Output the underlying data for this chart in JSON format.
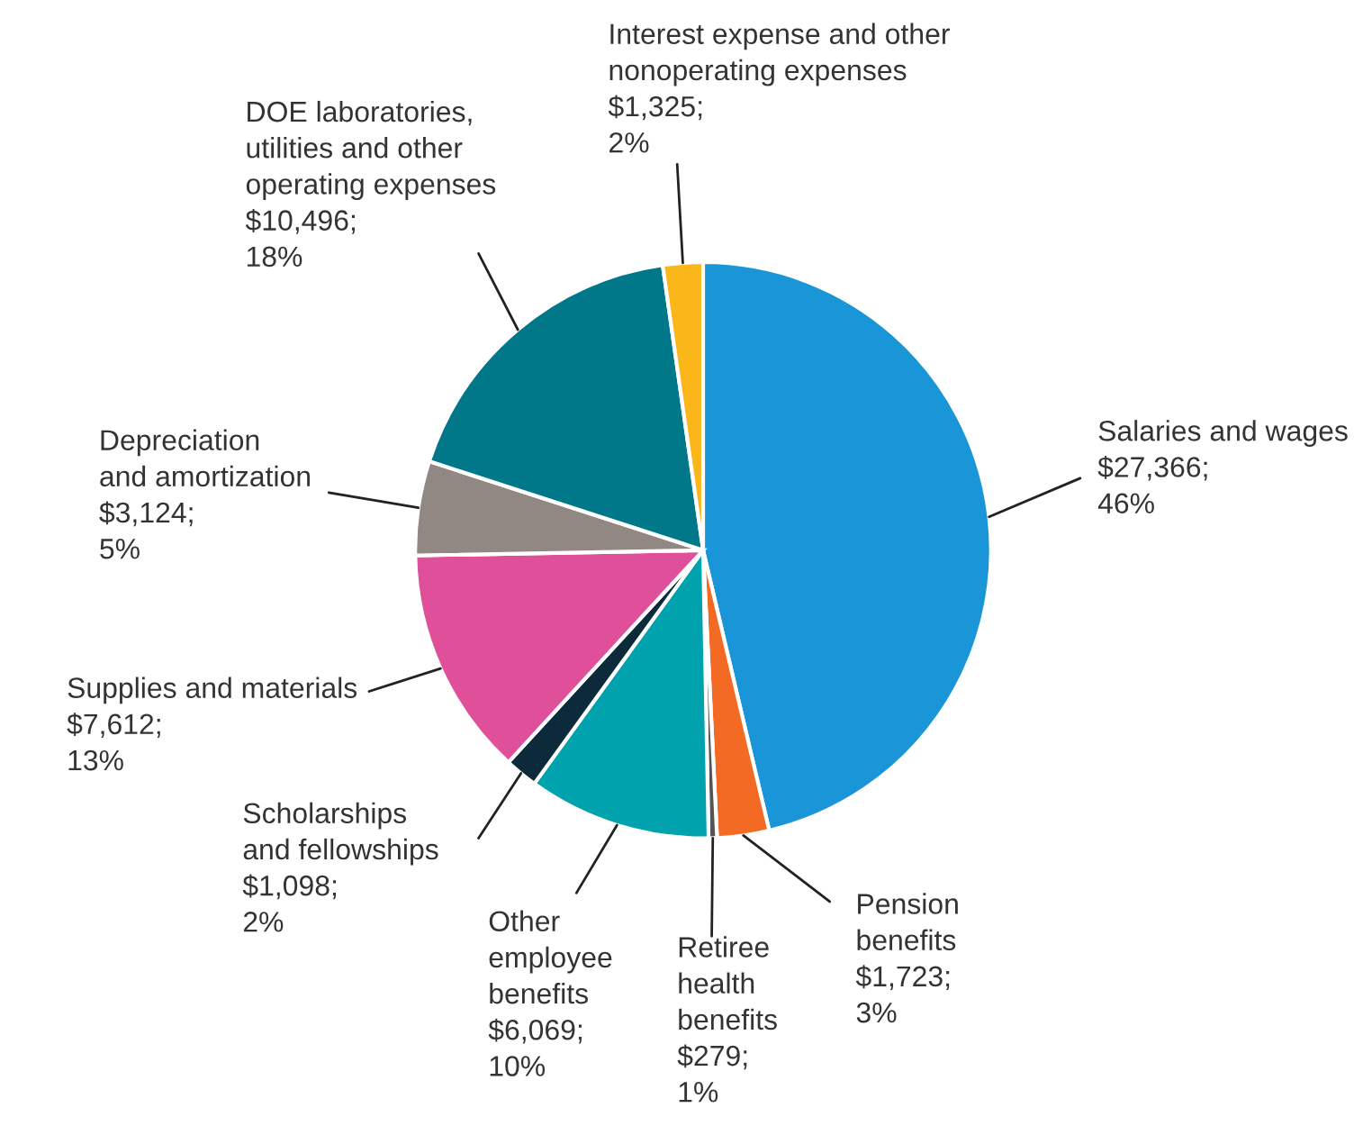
{
  "chart_data": {
    "type": "pie",
    "categories": [
      "Salaries and wages",
      "Pension\nbenefits",
      "Retiree\nhealth\nbenefits",
      "Other\nemployee\nbenefits",
      "Scholarships\nand fellowships",
      "Supplies and materials",
      "Depreciation\nand amortization",
      "DOE laboratories,\nutilities and other\noperating expenses",
      "Interest expense and other\nnonoperating expenses"
    ],
    "values": [
      27366,
      1723,
      279,
      6069,
      1098,
      7612,
      3124,
      10496,
      1325
    ],
    "value_labels": [
      "$27,366;\n46%",
      "$1,723;\n3%",
      "$279;\n1%",
      "$6,069;\n10%",
      "$1,098;\n2%",
      "$7,612;\n13%",
      "$3,124;\n5%",
      "$10,496;\n18%",
      "$1,325;\n2%"
    ],
    "colors": [
      "#1a96d8",
      "#f26a24",
      "#555555",
      "#00a3ad",
      "#0d2a3a",
      "#e0509a",
      "#918883",
      "#00788a",
      "#fbb61a"
    ],
    "legend": false
  }
}
